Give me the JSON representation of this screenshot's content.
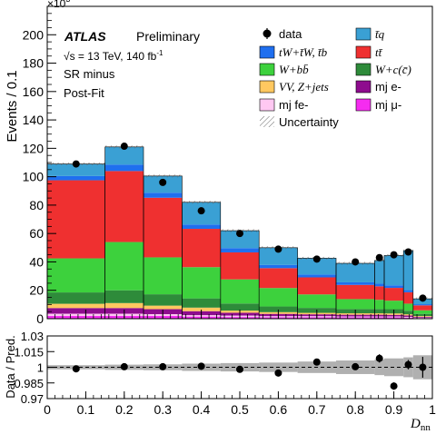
{
  "labels": {
    "y_main": "Events / 0.1",
    "y_ratio": "Data / Pred.",
    "x_axis": "D",
    "x_axis_sub": "nn",
    "multiplier": "×10",
    "multiplier_exp": "3",
    "atlas": "ATLAS",
    "preliminary": "Preliminary",
    "energy_pre": "√s = 13 TeV, 140 fb",
    "energy_exp": "-1",
    "region": "SR minus",
    "fit": "Post-Fit"
  },
  "legend": [
    {
      "key": "data",
      "label": "data",
      "kind": "marker",
      "color": "#000000"
    },
    {
      "key": "tq",
      "label": "t̄q",
      "kind": "box",
      "color": "#3aa0d4",
      "italic": true
    },
    {
      "key": "tW",
      "label": "tW+t̄W, t̄b",
      "kind": "box",
      "color": "#1f6fef",
      "italic": true
    },
    {
      "key": "ttbar",
      "label": "tt̄",
      "kind": "box",
      "color": "#ef3030",
      "italic": true
    },
    {
      "key": "Wbb",
      "label": "W+bb̄",
      "kind": "box",
      "color": "#3dd13d",
      "italic": true
    },
    {
      "key": "Wcc",
      "label": "W+c(c̄)",
      "kind": "box",
      "color": "#2e8b3a",
      "italic": true
    },
    {
      "key": "VV",
      "label": "VV, Z+jets",
      "kind": "box",
      "color": "#ffc860",
      "italic": true
    },
    {
      "key": "mje",
      "label": "mj e-",
      "kind": "box",
      "color": "#8e0c8e",
      "italic": false
    },
    {
      "key": "mjfe",
      "label": "mj fe-",
      "kind": "box",
      "color": "#ffc8f2",
      "italic": false
    },
    {
      "key": "mjmu",
      "label": "mj μ-",
      "kind": "box",
      "color": "#f52cf0",
      "italic": false
    },
    {
      "key": "unc",
      "label": "Uncertainty",
      "kind": "hatch",
      "color": "#888888",
      "italic": false
    }
  ],
  "chart_data": [
    {
      "type": "bar",
      "subtype": "stacked-histogram",
      "ylabel": "Events / 0.1",
      "y_multiplier": "×10^3",
      "xlim": [
        0,
        1
      ],
      "ylim": [
        0,
        220
      ],
      "yticks": [
        0,
        20,
        40,
        60,
        80,
        100,
        120,
        140,
        160,
        180,
        200
      ],
      "bin_edges": [
        0,
        0.15,
        0.25,
        0.35,
        0.45,
        0.55,
        0.65,
        0.75,
        0.85,
        0.875,
        0.925,
        0.95,
        1.0
      ],
      "stack_order_bottom_to_top": [
        "mjmu",
        "mjfe",
        "mje",
        "VV",
        "Wcc",
        "Wbb",
        "ttbar",
        "tW",
        "tq"
      ],
      "series": [
        {
          "name": "mj μ-",
          "key": "mjmu",
          "color": "#f52cf0",
          "values": [
            2,
            2,
            2,
            1.5,
            1.2,
            1,
            1,
            1,
            1,
            1,
            0.8,
            0.5
          ]
        },
        {
          "name": "mj fe-",
          "key": "mjfe",
          "color": "#ffc8f2",
          "values": [
            1.5,
            1.5,
            1.2,
            1,
            1,
            0.8,
            0.8,
            0.6,
            0.6,
            0.6,
            0.5,
            0.3
          ]
        },
        {
          "name": "mj e-",
          "key": "mje",
          "color": "#8e0c8e",
          "values": [
            4,
            4,
            3.5,
            2.8,
            2,
            1.6,
            1.3,
            1.2,
            1.2,
            1.1,
            1,
            0.6
          ]
        },
        {
          "name": "VV, Z+jets",
          "key": "VV",
          "color": "#ffc860",
          "values": [
            3,
            3.5,
            2.5,
            2.5,
            1.5,
            1.2,
            1,
            1,
            1,
            1,
            0.8,
            0.5
          ]
        },
        {
          "name": "W+c(c̄)",
          "key": "Wcc",
          "color": "#2e8b3a",
          "values": [
            8,
            9,
            8,
            6.5,
            5,
            4,
            3.5,
            3,
            3,
            3,
            2.5,
            1.5
          ]
        },
        {
          "name": "W+bb̄",
          "key": "Wbb",
          "color": "#3dd13d",
          "values": [
            24,
            34,
            26,
            22,
            17,
            13,
            9.5,
            7,
            6.5,
            6,
            5,
            2.5
          ]
        },
        {
          "name": "tt̄",
          "key": "ttbar",
          "color": "#ef3030",
          "values": [
            55,
            50,
            42,
            27,
            19,
            14,
            12,
            10,
            9.5,
            9,
            8,
            3.5
          ]
        },
        {
          "name": "tW+t̄W, t̄b",
          "key": "tW",
          "color": "#1f6fef",
          "values": [
            3,
            4.5,
            3.5,
            3,
            3,
            2.3,
            2,
            1.8,
            1.8,
            1.8,
            1.5,
            0.8
          ]
        },
        {
          "name": "t̄q",
          "key": "tq",
          "color": "#3aa0d4",
          "values": [
            8.5,
            12.5,
            11.8,
            15.7,
            12.3,
            12.1,
            11.5,
            13.4,
            16.4,
            21,
            27.9,
            3.8
          ]
        }
      ],
      "data_points": {
        "name": "data",
        "x": [
          0.075,
          0.2,
          0.3,
          0.4,
          0.5,
          0.6,
          0.7,
          0.8,
          0.8625,
          0.9,
          0.9375,
          0.975
        ],
        "y": [
          109,
          121.5,
          96,
          76,
          60,
          49,
          42,
          40,
          43,
          45,
          47,
          14.5
        ],
        "yerr": [
          0.5,
          0.5,
          0.5,
          0.5,
          0.5,
          0.5,
          0.5,
          0.5,
          0.5,
          0.5,
          0.5,
          0.5
        ]
      }
    },
    {
      "type": "scatter",
      "subtype": "ratio",
      "ylabel": "Data / Pred.",
      "xlabel": "D_nn",
      "xlim": [
        0,
        1
      ],
      "ylim": [
        0.97,
        1.03
      ],
      "yticks": [
        0.97,
        0.985,
        1,
        1.015,
        1.03
      ],
      "xticks": [
        0,
        0.1,
        0.2,
        0.3,
        0.4,
        0.5,
        0.6,
        0.7,
        0.8,
        0.9,
        1
      ],
      "reference_line": 1,
      "band_halfwidth_edges": [
        0,
        0.15,
        0.25,
        0.35,
        0.45,
        0.55,
        0.65,
        0.75,
        0.85,
        0.875,
        0.925,
        0.95,
        1.0
      ],
      "band_halfwidth": [
        0.002,
        0.0025,
        0.0028,
        0.0035,
        0.004,
        0.0045,
        0.0055,
        0.0065,
        0.0075,
        0.0085,
        0.0095,
        0.0115
      ],
      "x": [
        0.075,
        0.2,
        0.3,
        0.4,
        0.5,
        0.6,
        0.7,
        0.8,
        0.8625,
        0.9,
        0.9375,
        0.975
      ],
      "y": [
        0.9985,
        1.0005,
        1.0005,
        1.001,
        0.998,
        0.9945,
        1.005,
        1.0005,
        1.0085,
        0.982,
        1.0025,
        1.0
      ],
      "yerr": [
        0.001,
        0.001,
        0.001,
        0.0012,
        0.0015,
        0.0015,
        0.002,
        0.002,
        0.004,
        0.0035,
        0.0045,
        0.01
      ]
    }
  ]
}
